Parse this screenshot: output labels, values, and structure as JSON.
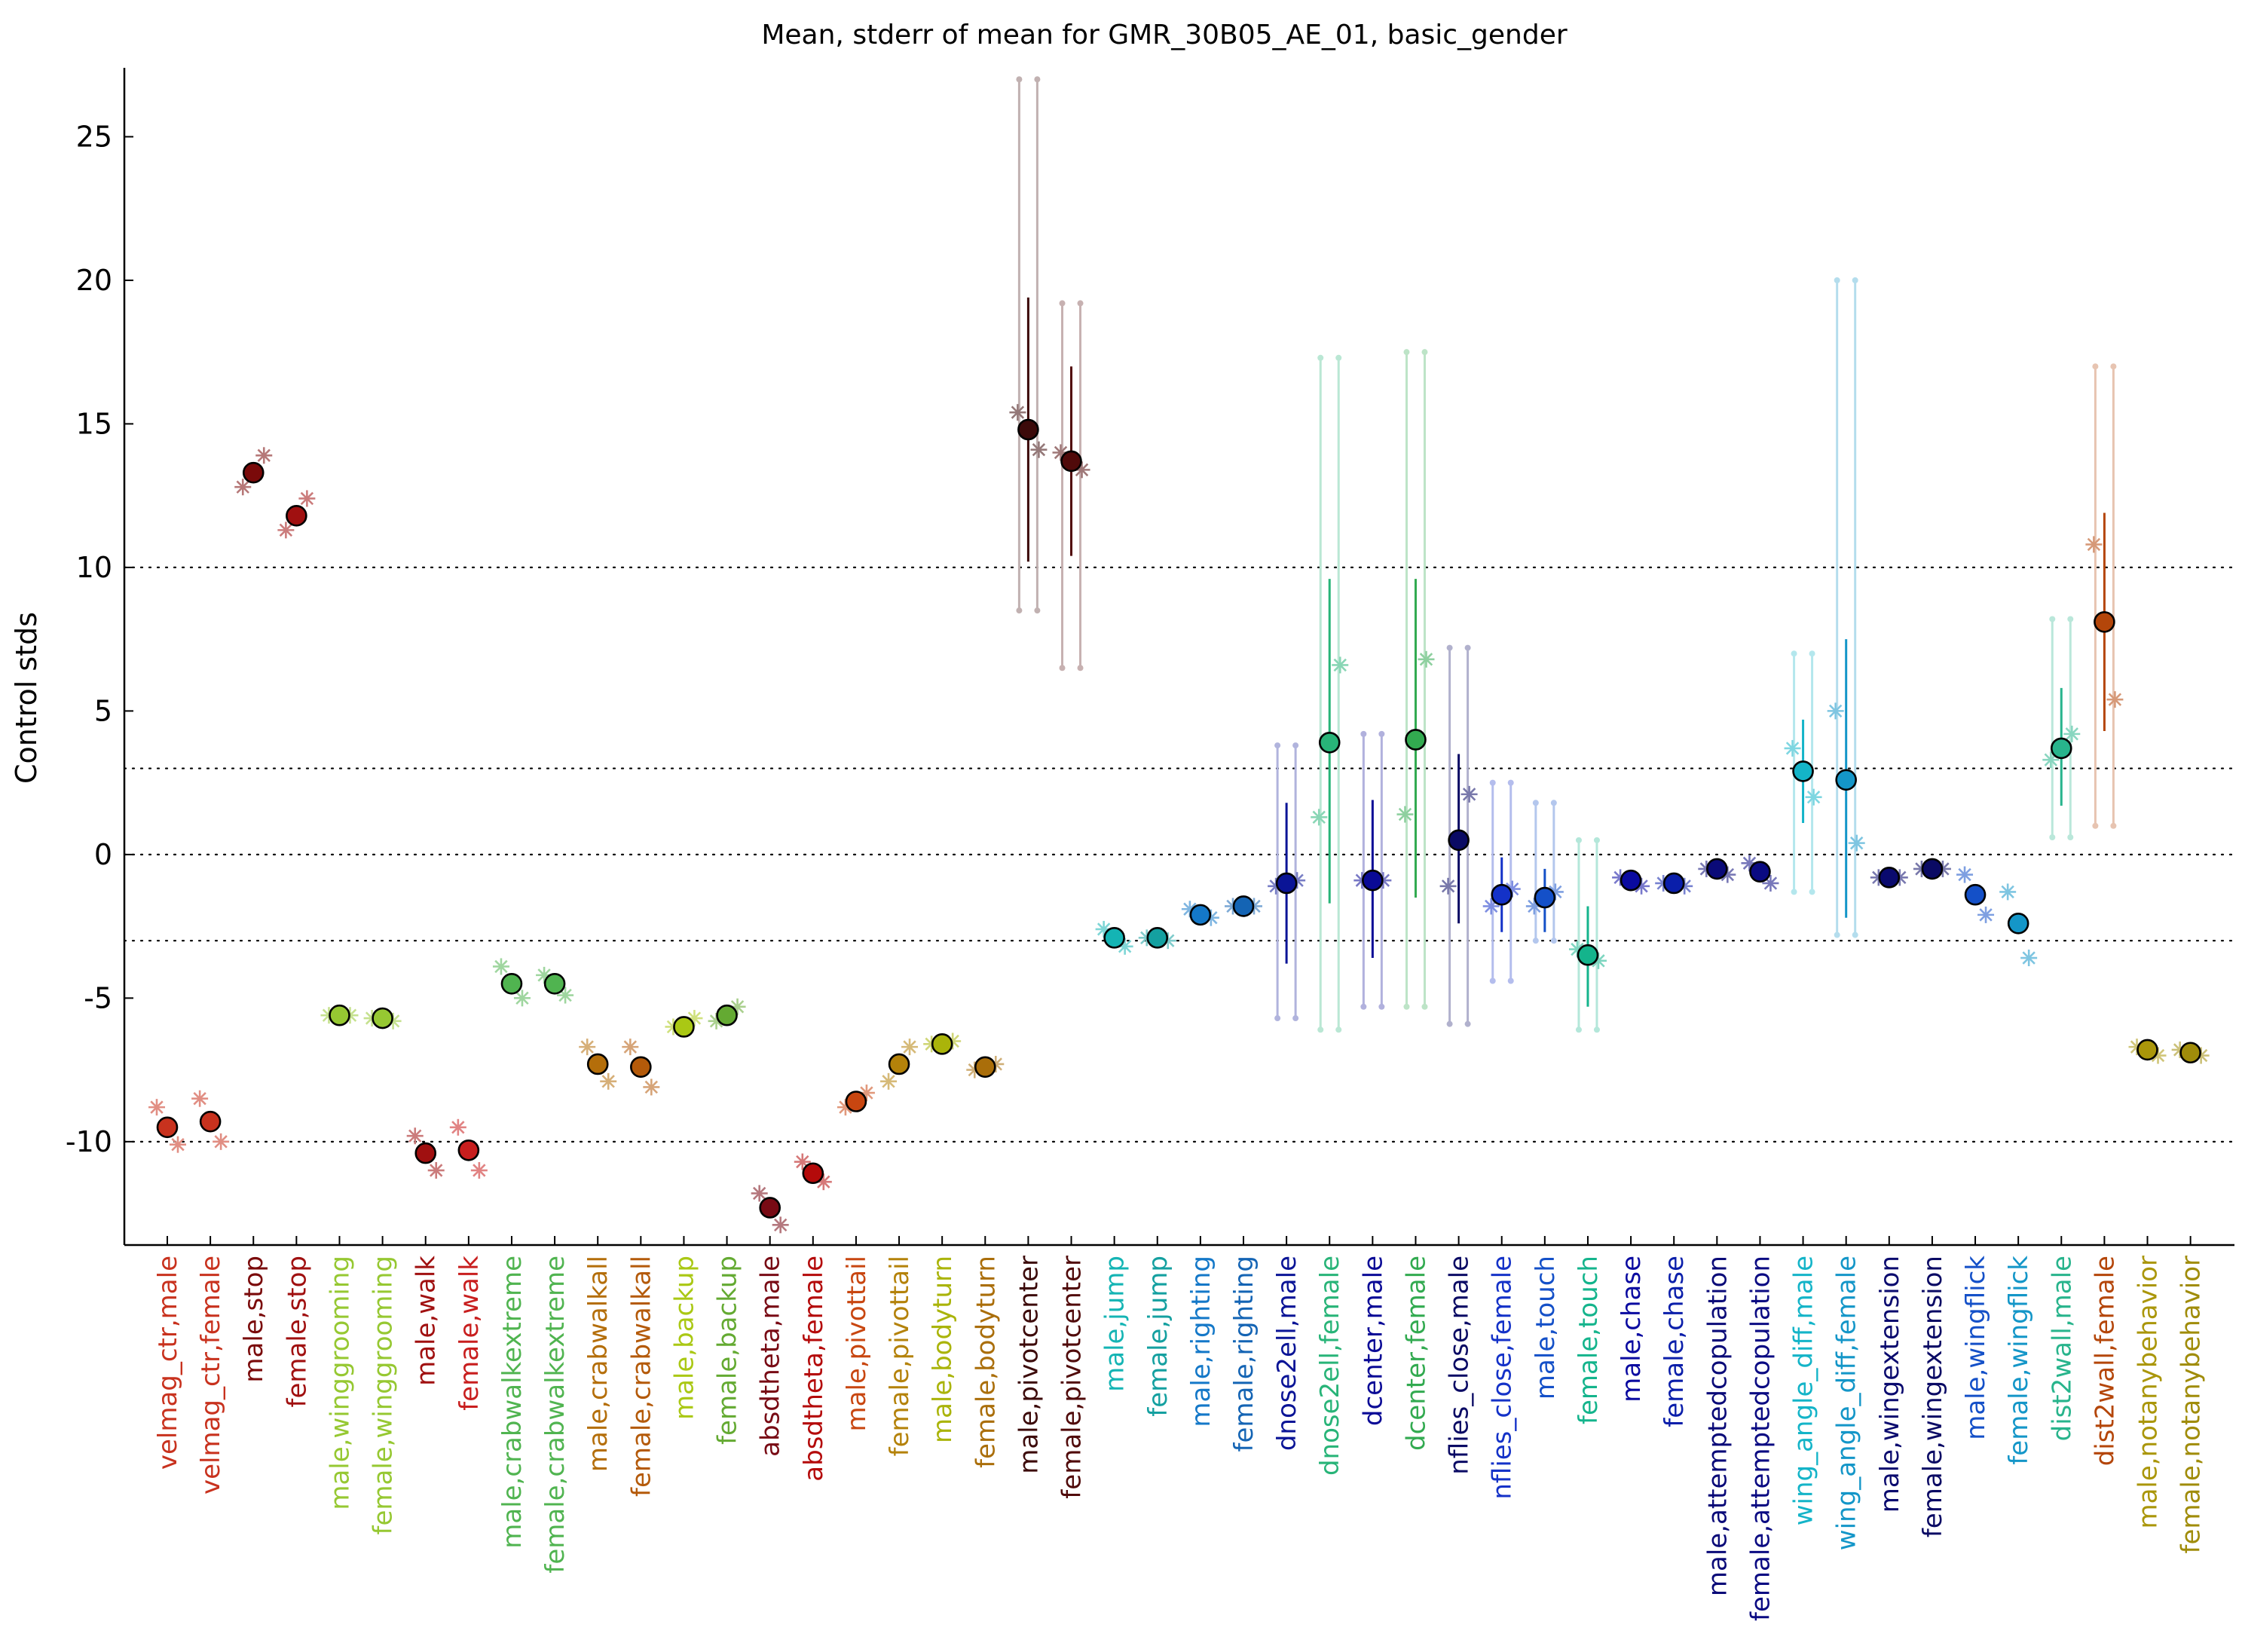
{
  "chart_data": {
    "type": "scatter",
    "title": "Mean, stderr of mean for GMR_30B05_AE_01, basic_gender",
    "xlabel": "",
    "ylabel": "Control stds",
    "ylim": [
      -13.6,
      27.4
    ],
    "yticks": [
      25,
      20,
      15,
      10,
      5,
      0,
      -5,
      -10
    ],
    "ytick_labels": [
      "25",
      "20",
      "15",
      "10",
      "5",
      "0",
      "-5",
      "-10"
    ],
    "reference_lines": [
      10,
      3,
      0,
      -3,
      -10
    ],
    "grid": false,
    "legend": "none",
    "categories": [
      "velmag_ctr,male",
      "velmag_ctr,female",
      "male,stop",
      "female,stop",
      "male,winggrooming",
      "female,winggrooming",
      "male,walk",
      "female,walk",
      "male,crabwalkextreme",
      "female,crabwalkextreme",
      "male,crabwalkall",
      "female,crabwalkall",
      "male,backup",
      "female,backup",
      "absdtheta,male",
      "absdtheta,female",
      "male,pivottail",
      "female,pivottail",
      "male,bodyturn",
      "female,bodyturn",
      "male,pivotcenter",
      "female,pivotcenter",
      "male,jump",
      "female,jump",
      "male,righting",
      "female,righting",
      "dnose2ell,male",
      "dnose2ell,female",
      "dcenter,male",
      "dcenter,female",
      "nflies_close,male",
      "nflies_close,female",
      "male,touch",
      "female,touch",
      "male,chase",
      "female,chase",
      "male,attemptedcopulation",
      "female,attemptedcopulation",
      "wing_angle_diff,male",
      "wing_angle_diff,female",
      "male,wingextension",
      "female,wingextension",
      "male,wingflick",
      "female,wingflick",
      "dist2wall,male",
      "dist2wall,female",
      "male,notanybehavior",
      "female,notanybehavior"
    ],
    "colors": [
      "#c8321e",
      "#c8321e",
      "#7a0a0a",
      "#a01010",
      "#96c832",
      "#96c832",
      "#a01010",
      "#c81e1e",
      "#50b450",
      "#50b450",
      "#b46e0a",
      "#b45a0a",
      "#aac814",
      "#64aa32",
      "#780a14",
      "#b40a0a",
      "#c84610",
      "#b4820a",
      "#aab40a",
      "#aa6e0a",
      "#3c0a0a",
      "#500a0a",
      "#14b4b4",
      "#14a0a0",
      "#1478c8",
      "#1464b4",
      "#0a1496",
      "#28b478",
      "#0a0a96",
      "#32aa50",
      "#0a0a64",
      "#1432c8",
      "#1450c8",
      "#14b48c",
      "#0a0aa0",
      "#0a1eaa",
      "#0a0a78",
      "#0a0a82",
      "#14b4c8",
      "#1496c8",
      "#0a0a6e",
      "#0a0a64",
      "#1450c8",
      "#1496c8",
      "#28b48c",
      "#b4460a",
      "#aa960a",
      "#a08c0a"
    ],
    "series": [
      {
        "name": "",
        "values": [
          -9.5,
          -9.3,
          13.3,
          11.8,
          -5.6,
          -5.7,
          -10.4,
          -10.3,
          -4.5,
          -4.5,
          -7.3,
          -7.4,
          -6.0,
          -5.6,
          -12.3,
          -11.1,
          -8.6,
          -7.3,
          -6.6,
          -7.4,
          14.8,
          13.7,
          -2.9,
          -2.9,
          -2.1,
          -1.8,
          -1.0,
          3.9,
          -0.9,
          4.0,
          0.5,
          -1.4,
          -1.5,
          -3.5,
          -0.9,
          -1.0,
          -0.5,
          -0.6,
          2.9,
          2.6,
          -0.8,
          -0.5,
          -1.4,
          -2.4,
          3.7,
          8.1,
          -6.8,
          -6.9
        ]
      }
    ],
    "errorbars": [
      {
        "category": "male,pivotcenter",
        "low": 10.2,
        "high": 19.4,
        "range_low": 8.5,
        "range_high": 27.0
      },
      {
        "category": "female,pivotcenter",
        "low": 10.4,
        "high": 17.0,
        "range_low": 6.5,
        "range_high": 19.2
      },
      {
        "category": "dnose2ell,male",
        "low": -3.8,
        "high": 1.8,
        "range_low": -5.7,
        "range_high": 3.8
      },
      {
        "category": "dnose2ell,female",
        "low": -1.7,
        "high": 9.6,
        "range_low": -6.1,
        "range_high": 17.3
      },
      {
        "category": "dcenter,male",
        "low": -3.6,
        "high": 1.9,
        "range_low": -5.3,
        "range_high": 4.2
      },
      {
        "category": "dcenter,female",
        "low": -1.5,
        "high": 9.6,
        "range_low": -5.3,
        "range_high": 17.5
      },
      {
        "category": "nflies_close,male",
        "low": -2.4,
        "high": 3.5,
        "range_low": -5.9,
        "range_high": 7.2
      },
      {
        "category": "nflies_close,female",
        "low": -2.7,
        "high": -0.1,
        "range_low": -4.4,
        "range_high": 2.5
      },
      {
        "category": "male,touch",
        "low": -2.7,
        "high": -0.5,
        "range_low": -3.0,
        "range_high": 1.8
      },
      {
        "category": "female,touch",
        "low": -5.3,
        "high": -1.8,
        "range_low": -6.1,
        "range_high": 0.5
      },
      {
        "category": "wing_angle_diff,male",
        "low": 1.1,
        "high": 4.7,
        "range_low": -1.3,
        "range_high": 7.0
      },
      {
        "category": "wing_angle_diff,female",
        "low": -2.2,
        "high": 7.5,
        "range_low": -2.8,
        "range_high": 20.0
      },
      {
        "category": "dist2wall,male",
        "low": 1.7,
        "high": 5.8,
        "range_low": 0.6,
        "range_high": 8.2
      },
      {
        "category": "dist2wall,female",
        "low": 4.3,
        "high": 11.9,
        "range_low": 1.0,
        "range_high": 17.0
      }
    ],
    "control_markers": [
      [
        -8.8,
        -10.1
      ],
      [
        -8.5,
        -10.0
      ],
      [
        12.8,
        13.9
      ],
      [
        11.3,
        12.4
      ],
      [
        -5.6,
        -5.6
      ],
      [
        -5.7,
        -5.8
      ],
      [
        -9.8,
        -11.0
      ],
      [
        -9.5,
        -11.0
      ],
      [
        -3.9,
        -5.0
      ],
      [
        -4.2,
        -4.9
      ],
      [
        -6.7,
        -7.9
      ],
      [
        -6.7,
        -8.1
      ],
      [
        -6.0,
        -5.7
      ],
      [
        -5.8,
        -5.3
      ],
      [
        -11.8,
        -12.9
      ],
      [
        -10.7,
        -11.4
      ],
      [
        -8.8,
        -8.3
      ],
      [
        -7.9,
        -6.7
      ],
      [
        -6.6,
        -6.5
      ],
      [
        -7.5,
        -7.3
      ],
      [
        15.4,
        14.1
      ],
      [
        14.0,
        13.4
      ],
      [
        -2.6,
        -3.2
      ],
      [
        -2.9,
        -3.0
      ],
      [
        -1.9,
        -2.2
      ],
      [
        -1.8,
        -1.8
      ],
      [
        -1.1,
        -0.9
      ],
      [
        1.3,
        6.6
      ],
      [
        -0.9,
        -0.9
      ],
      [
        1.4,
        6.8
      ],
      [
        -1.1,
        2.1
      ],
      [
        -1.8,
        -1.2
      ],
      [
        -1.8,
        -1.3
      ],
      [
        -3.3,
        -3.7
      ],
      [
        -0.8,
        -1.1
      ],
      [
        -1.0,
        -1.1
      ],
      [
        -0.5,
        -0.7
      ],
      [
        -0.3,
        -1.0
      ],
      [
        3.7,
        2.0
      ],
      [
        5.0,
        0.4
      ],
      [
        -0.8,
        -0.8
      ],
      [
        -0.5,
        -0.5
      ],
      [
        -0.7,
        -2.1
      ],
      [
        -1.3,
        -3.6
      ],
      [
        3.3,
        4.2
      ],
      [
        10.8,
        5.4
      ],
      [
        -6.7,
        -7.0
      ],
      [
        -6.8,
        -7.0
      ]
    ]
  }
}
